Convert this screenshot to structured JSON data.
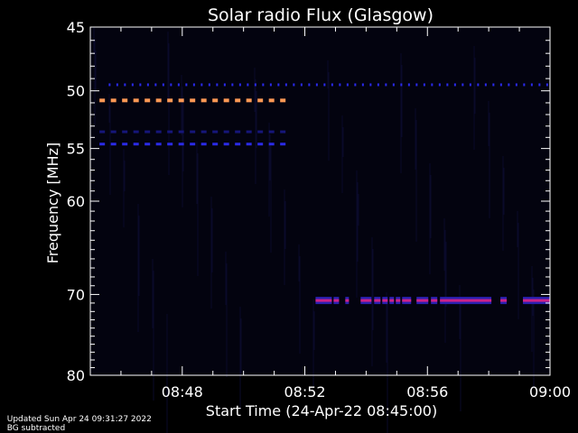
{
  "chart_data": {
    "type": "heatmap",
    "title": "Solar radio Flux (Glasgow)",
    "xlabel": "Start Time (24-Apr-22 08:45:00)",
    "ylabel": "Frequency [MHz]",
    "x_ticks": [
      "08:48",
      "08:52",
      "08:56",
      "09:00"
    ],
    "x_tick_minutes": [
      3,
      7,
      11,
      15
    ],
    "xlim_minutes": [
      0,
      15
    ],
    "y_ticks": [
      45,
      50,
      55,
      60,
      70,
      80
    ],
    "ylim": [
      45,
      80
    ],
    "y_scale": "log",
    "background_color": "#03030f",
    "emission_bands": [
      {
        "freq": 49.5,
        "start_min": 0.6,
        "end_min": 15.0,
        "color": "#2a2aee",
        "style": "dashed"
      },
      {
        "freq": 50.8,
        "start_min": 0.3,
        "end_min": 6.5,
        "color": "#ff9955",
        "style": "dashed"
      },
      {
        "freq": 53.5,
        "start_min": 0.3,
        "end_min": 6.5,
        "color": "#16167a",
        "style": "dashed"
      },
      {
        "freq": 54.6,
        "start_min": 0.3,
        "end_min": 6.5,
        "color": "#2a2ae6",
        "style": "dashed"
      },
      {
        "freq": 70.7,
        "start_min": 7.35,
        "end_min": 15.0,
        "color": "#cc2288",
        "style": "segments"
      }
    ]
  },
  "footer": {
    "updated": "Updated Sun Apr 24 09:31:27 2022",
    "bg_note": "BG subtracted"
  }
}
